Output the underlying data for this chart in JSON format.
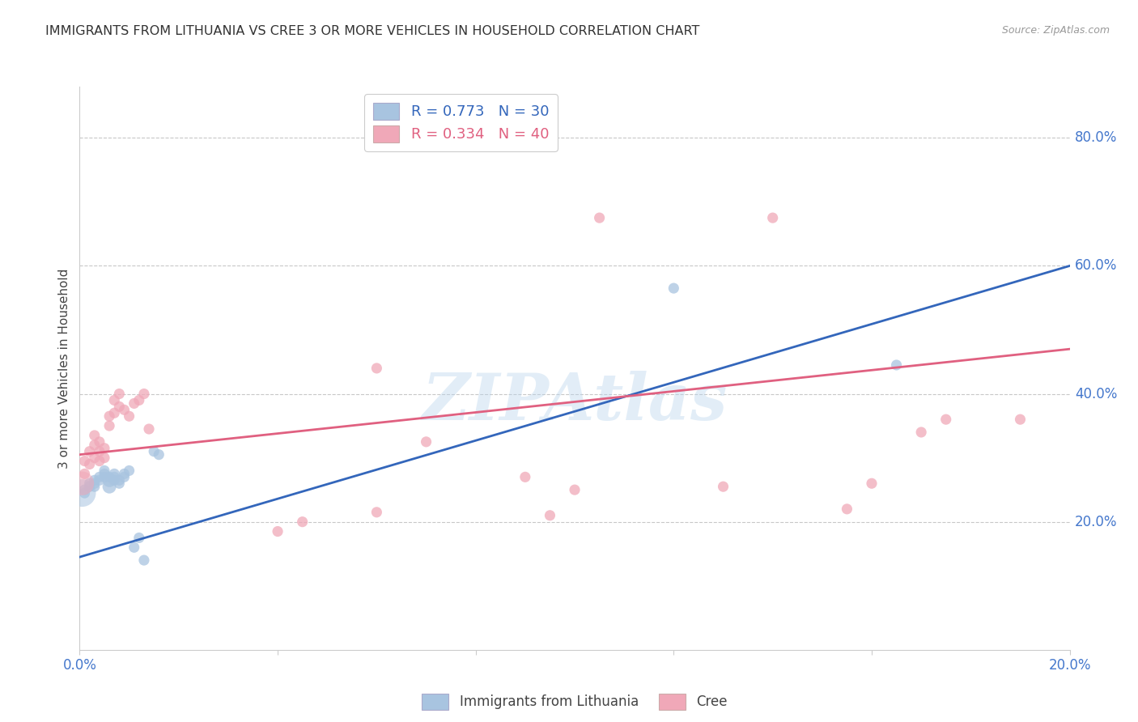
{
  "title": "IMMIGRANTS FROM LITHUANIA VS CREE 3 OR MORE VEHICLES IN HOUSEHOLD CORRELATION CHART",
  "source": "Source: ZipAtlas.com",
  "ylabel": "3 or more Vehicles in Household",
  "xlim": [
    0.0,
    0.2
  ],
  "ylim": [
    0.0,
    0.88
  ],
  "yticks_right": [
    0.2,
    0.4,
    0.6,
    0.8
  ],
  "ytick_labels_right": [
    "20.0%",
    "40.0%",
    "60.0%",
    "80.0%"
  ],
  "blue_color": "#A8C4E0",
  "pink_color": "#F0A8B8",
  "blue_line_color": "#3366BB",
  "pink_line_color": "#E06080",
  "watermark": "ZIPAtlas",
  "background_color": "#FFFFFF",
  "grid_color": "#C8C8C8",
  "blue_scatter_x": [
    0.001,
    0.001,
    0.002,
    0.002,
    0.003,
    0.003,
    0.003,
    0.004,
    0.004,
    0.005,
    0.005,
    0.005,
    0.006,
    0.006,
    0.006,
    0.007,
    0.007,
    0.007,
    0.008,
    0.008,
    0.009,
    0.009,
    0.01,
    0.011,
    0.012,
    0.013,
    0.015,
    0.016,
    0.12,
    0.165
  ],
  "blue_scatter_y": [
    0.245,
    0.25,
    0.255,
    0.26,
    0.255,
    0.26,
    0.265,
    0.265,
    0.27,
    0.27,
    0.275,
    0.28,
    0.255,
    0.265,
    0.27,
    0.265,
    0.27,
    0.275,
    0.26,
    0.265,
    0.27,
    0.275,
    0.28,
    0.16,
    0.175,
    0.14,
    0.31,
    0.305,
    0.565,
    0.445
  ],
  "blue_scatter_size": [
    90,
    90,
    90,
    90,
    90,
    90,
    90,
    90,
    90,
    90,
    90,
    90,
    150,
    150,
    90,
    90,
    90,
    90,
    90,
    90,
    90,
    90,
    90,
    90,
    90,
    90,
    90,
    90,
    90,
    90
  ],
  "blue_large_idx": [
    0,
    12,
    13
  ],
  "blue_large_size": [
    350,
    200,
    180
  ],
  "pink_scatter_x": [
    0.001,
    0.001,
    0.002,
    0.002,
    0.003,
    0.003,
    0.003,
    0.004,
    0.004,
    0.004,
    0.005,
    0.005,
    0.006,
    0.006,
    0.007,
    0.007,
    0.008,
    0.008,
    0.009,
    0.01,
    0.011,
    0.012,
    0.013,
    0.014,
    0.04,
    0.045,
    0.06,
    0.06,
    0.07,
    0.09,
    0.095,
    0.1,
    0.105,
    0.13,
    0.14,
    0.155,
    0.16,
    0.17,
    0.175,
    0.19
  ],
  "pink_scatter_y": [
    0.275,
    0.295,
    0.29,
    0.31,
    0.3,
    0.32,
    0.335,
    0.295,
    0.31,
    0.325,
    0.315,
    0.3,
    0.35,
    0.365,
    0.37,
    0.39,
    0.38,
    0.4,
    0.375,
    0.365,
    0.385,
    0.39,
    0.4,
    0.345,
    0.185,
    0.2,
    0.44,
    0.215,
    0.325,
    0.27,
    0.21,
    0.25,
    0.675,
    0.255,
    0.675,
    0.22,
    0.26,
    0.34,
    0.36,
    0.36
  ],
  "pink_scatter_size": [
    90,
    90,
    90,
    90,
    90,
    90,
    90,
    90,
    90,
    90,
    90,
    90,
    90,
    90,
    90,
    90,
    90,
    90,
    90,
    90,
    90,
    90,
    90,
    90,
    90,
    90,
    90,
    90,
    90,
    90,
    90,
    90,
    90,
    90,
    90,
    90,
    90,
    90,
    90,
    90
  ],
  "pink_large_idx": [
    0
  ],
  "pink_large_size": [
    350
  ]
}
